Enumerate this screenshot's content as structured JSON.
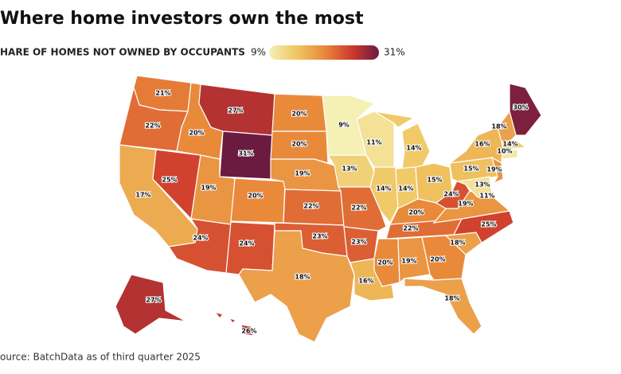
{
  "chart_data": {
    "type": "choropleth",
    "title": "Where home investors own the most",
    "subtitle": "HARE OF HOMES NOT OWNED BY OCCUPANTS",
    "source": "ource: BatchData as of third quarter 2025",
    "colorlim": [
      9,
      31
    ],
    "colorticks": [
      {
        "value": 9,
        "label": "9%"
      },
      {
        "value": 31,
        "label": "31%"
      }
    ],
    "colors": [
      "#f5f0b4",
      "#efc662",
      "#e98a3b",
      "#cf3b2d",
      "#6b1a40"
    ],
    "values": [
      21,
      22,
      17,
      25,
      20,
      27,
      31,
      19,
      24,
      20,
      24,
      20,
      20,
      19,
      22,
      23,
      18,
      9,
      13,
      22,
      23,
      16,
      11,
      14,
      14,
      14,
      15,
      20,
      22,
      20,
      19,
      20,
      18,
      18,
      25,
      19,
      24,
      15,
      16,
      30,
      18,
      14,
      10,
      19,
      13,
      11,
      27,
      26
    ],
    "value_labels": [
      "21%",
      "22%",
      "17%",
      "25%",
      "20%",
      "27%",
      "31%",
      "19%",
      "24%",
      "20%",
      "24%",
      "20%",
      "20%",
      "19%",
      "22%",
      "23%",
      "18%",
      "9%",
      "13%",
      "22%",
      "23%",
      "16%",
      "11%",
      "14%",
      "14%",
      "14%",
      "15%",
      "20%",
      "22%",
      "20%",
      "19%",
      "20%",
      "18%",
      "18%",
      "25%",
      "19%",
      "24%",
      "15%",
      "16%",
      "30%",
      "18%",
      "14%",
      "10%",
      "19%",
      "13%",
      "11%",
      "27%",
      "26%"
    ]
  }
}
